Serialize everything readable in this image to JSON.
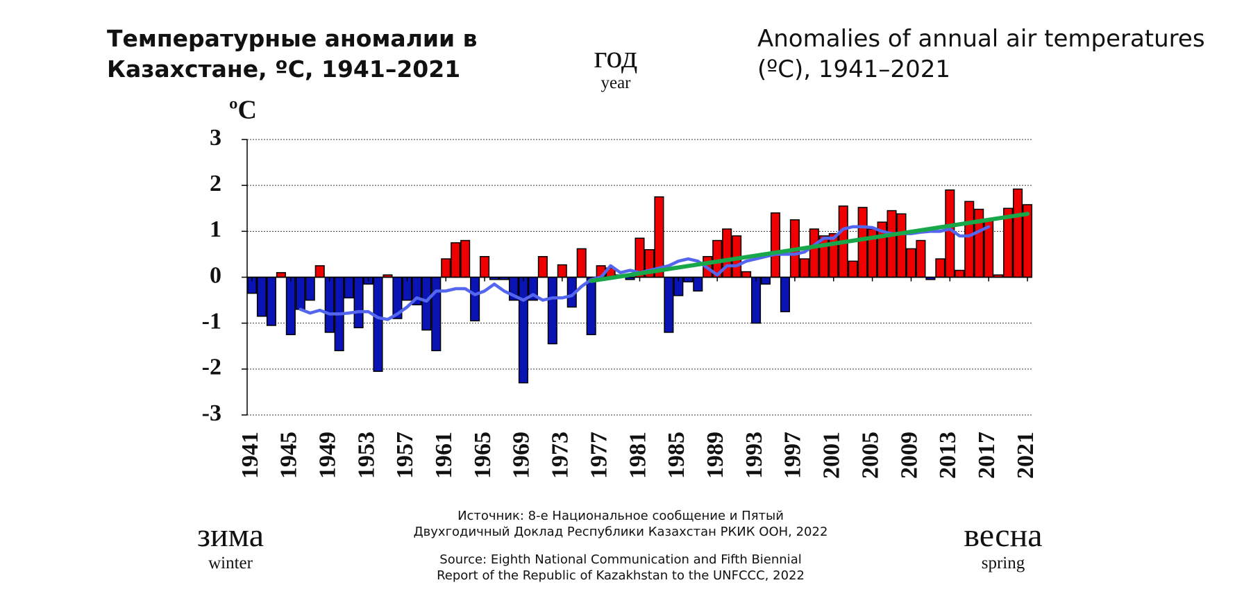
{
  "title_ru": "Температурные аномалии в Казахстане, ºC, 1941–2021",
  "title_en": "Anomalies of annual air temperatures (ºC), 1941–2021",
  "season": {
    "label_ru": "год",
    "label_en": "year"
  },
  "prev_season": {
    "label_ru": "зима",
    "label_en": "winter"
  },
  "next_season": {
    "label_ru": "весна",
    "label_en": "spring"
  },
  "source_ru": [
    "Источник: 8-е Национальное сообщение и Пятый",
    "Двухгодичный Доклад Республики Казахстан РКИК ООН, 2022"
  ],
  "source_en": [
    "Source: Eighth National Communication and Fifth Biennial",
    "Report of the Republic of Kazakhstan to the UNFCCC, 2022"
  ],
  "chart_data": {
    "type": "bar",
    "y_label": "ºC",
    "x": [
      1941,
      1942,
      1943,
      1944,
      1945,
      1946,
      1947,
      1948,
      1949,
      1950,
      1951,
      1952,
      1953,
      1954,
      1955,
      1956,
      1957,
      1958,
      1959,
      1960,
      1961,
      1962,
      1963,
      1964,
      1965,
      1966,
      1967,
      1968,
      1969,
      1970,
      1971,
      1972,
      1973,
      1974,
      1975,
      1976,
      1977,
      1978,
      1979,
      1980,
      1981,
      1982,
      1983,
      1984,
      1985,
      1986,
      1987,
      1988,
      1989,
      1990,
      1991,
      1992,
      1993,
      1994,
      1995,
      1996,
      1997,
      1998,
      1999,
      2000,
      2001,
      2002,
      2003,
      2004,
      2005,
      2006,
      2007,
      2008,
      2009,
      2010,
      2011,
      2012,
      2013,
      2014,
      2015,
      2016,
      2017,
      2018,
      2019,
      2020,
      2021
    ],
    "values": [
      -0.35,
      -0.85,
      -1.05,
      0.1,
      -1.25,
      -0.7,
      -0.5,
      0.25,
      -1.2,
      -1.6,
      -0.45,
      -1.1,
      -0.15,
      -2.05,
      0.05,
      -0.9,
      -0.5,
      -0.6,
      -1.15,
      -1.6,
      0.4,
      0.75,
      0.8,
      -0.95,
      0.45,
      -0.05,
      -0.05,
      -0.5,
      -2.3,
      -0.5,
      0.45,
      -1.45,
      0.27,
      -0.65,
      0.62,
      -1.25,
      0.25,
      0.2,
      0.05,
      -0.05,
      0.85,
      0.6,
      1.75,
      -1.2,
      -0.4,
      -0.1,
      -0.3,
      0.45,
      0.8,
      1.05,
      0.9,
      0.12,
      -1.0,
      -0.15,
      1.4,
      -0.75,
      1.25,
      0.4,
      1.05,
      0.9,
      0.95,
      1.55,
      0.35,
      1.52,
      1.05,
      1.2,
      1.45,
      1.38,
      0.62,
      0.8,
      -0.05,
      0.4,
      1.9,
      0.15,
      1.65,
      1.48,
      1.25,
      0.05,
      1.5,
      1.92,
      1.58
    ],
    "positive_color": "#ee0000",
    "negative_color": "#0a14b4",
    "lines": [
      {
        "color": "#5566ee",
        "x": [
          1946,
          1947,
          1948,
          1949,
          1950,
          1951,
          1952,
          1953,
          1954,
          1955,
          1956,
          1957,
          1958,
          1959,
          1960,
          1961,
          1962,
          1963,
          1964,
          1965,
          1966,
          1967,
          1968,
          1969,
          1970,
          1971,
          1972,
          1973,
          1974,
          1975,
          1976,
          1977,
          1978,
          1979,
          1980,
          1981,
          1982,
          1983,
          1984,
          1985,
          1986,
          1987,
          1988,
          1989,
          1990,
          1991,
          1992,
          1993,
          1994,
          1995,
          1996,
          1997,
          1998,
          1999,
          2000,
          2001,
          2002,
          2003,
          2004,
          2005,
          2006,
          2007,
          2008,
          2009,
          2010,
          2011,
          2012,
          2013,
          2014,
          2015,
          2016,
          2017
        ],
        "values": [
          -0.7,
          -0.78,
          -0.72,
          -0.8,
          -0.8,
          -0.78,
          -0.75,
          -0.75,
          -0.88,
          -0.92,
          -0.8,
          -0.65,
          -0.45,
          -0.52,
          -0.3,
          -0.3,
          -0.25,
          -0.25,
          -0.38,
          -0.3,
          -0.15,
          -0.3,
          -0.4,
          -0.5,
          -0.38,
          -0.5,
          -0.45,
          -0.45,
          -0.4,
          -0.2,
          -0.05,
          0.0,
          0.25,
          0.1,
          0.15,
          0.1,
          0.15,
          0.2,
          0.25,
          0.35,
          0.4,
          0.35,
          0.2,
          0.05,
          0.25,
          0.25,
          0.35,
          0.4,
          0.45,
          0.5,
          0.5,
          0.5,
          0.55,
          0.7,
          0.85,
          0.85,
          1.05,
          1.1,
          1.1,
          1.08,
          1.0,
          0.95,
          0.95,
          0.95,
          0.98,
          1.0,
          1.0,
          1.05,
          0.9,
          0.9,
          1.0,
          1.1
        ]
      },
      {
        "color": "#18a84a",
        "x": [
          1976,
          2021
        ],
        "values": [
          -0.08,
          1.38
        ]
      }
    ],
    "xlim": [
      1940.5,
      2021.5
    ],
    "xticks": [
      1941,
      1945,
      1949,
      1953,
      1957,
      1961,
      1965,
      1969,
      1973,
      1977,
      1981,
      1985,
      1989,
      1993,
      1997,
      2001,
      2005,
      2009,
      2013,
      2017,
      2021
    ],
    "ylim": [
      -3,
      3
    ],
    "yticks": [
      3,
      2,
      1,
      0,
      -1,
      -2,
      -3
    ],
    "grid": true
  }
}
